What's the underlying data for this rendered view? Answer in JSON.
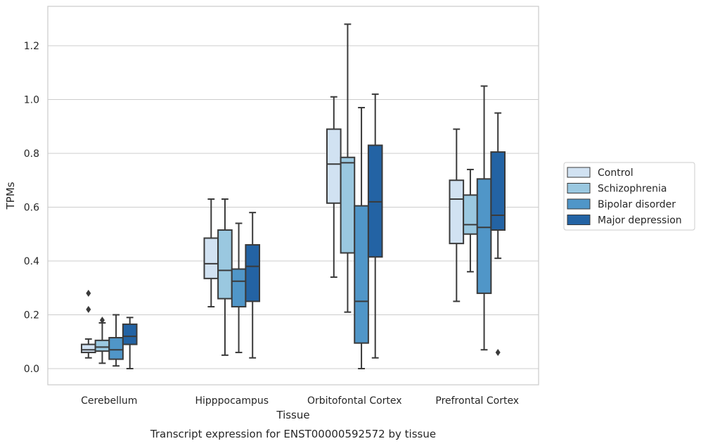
{
  "chart_data": {
    "type": "boxplot",
    "title": "",
    "caption": "Transcript expression for ENST00000592572 by tissue",
    "xlabel": "Tissue",
    "ylabel": "TPMs",
    "ylim": [
      -0.06,
      1.34
    ],
    "yticks": [
      0.0,
      0.2,
      0.4,
      0.6,
      0.8,
      1.0,
      1.2
    ],
    "ytick_labels": [
      "0.0",
      "0.2",
      "0.4",
      "0.6",
      "0.8",
      "1.0",
      "1.2"
    ],
    "grid": "horizontal",
    "legend_position": "right",
    "categories": [
      "Cerebellum",
      "Hipppocampus",
      "Orbitofontal Cortex",
      "Prefrontal Cortex"
    ],
    "series": [
      {
        "name": "Control",
        "color": "#d1e2f2",
        "boxes": [
          {
            "whislo": 0.04,
            "q1": 0.06,
            "med": 0.07,
            "q3": 0.09,
            "whishi": 0.11,
            "fliers": [
              0.22,
              0.28
            ]
          },
          {
            "whislo": 0.23,
            "q1": 0.335,
            "med": 0.39,
            "q3": 0.485,
            "whishi": 0.63,
            "fliers": []
          },
          {
            "whislo": 0.34,
            "q1": 0.615,
            "med": 0.76,
            "q3": 0.89,
            "whishi": 1.01,
            "fliers": []
          },
          {
            "whislo": 0.25,
            "q1": 0.465,
            "med": 0.63,
            "q3": 0.7,
            "whishi": 0.89,
            "fliers": []
          }
        ]
      },
      {
        "name": "Schizophrenia",
        "color": "#9ac8e0",
        "boxes": [
          {
            "whislo": 0.02,
            "q1": 0.065,
            "med": 0.08,
            "q3": 0.105,
            "whishi": 0.17,
            "fliers": [
              0.18
            ]
          },
          {
            "whislo": 0.05,
            "q1": 0.26,
            "med": 0.365,
            "q3": 0.515,
            "whishi": 0.63,
            "fliers": []
          },
          {
            "whislo": 0.21,
            "q1": 0.43,
            "med": 0.765,
            "q3": 0.785,
            "whishi": 1.28,
            "fliers": []
          },
          {
            "whislo": 0.36,
            "q1": 0.5,
            "med": 0.535,
            "q3": 0.645,
            "whishi": 0.74,
            "fliers": []
          }
        ]
      },
      {
        "name": "Bipolar disorder",
        "color": "#5096c8",
        "boxes": [
          {
            "whislo": 0.01,
            "q1": 0.035,
            "med": 0.07,
            "q3": 0.115,
            "whishi": 0.2,
            "fliers": []
          },
          {
            "whislo": 0.06,
            "q1": 0.23,
            "med": 0.325,
            "q3": 0.37,
            "whishi": 0.54,
            "fliers": []
          },
          {
            "whislo": 0.0,
            "q1": 0.095,
            "med": 0.25,
            "q3": 0.605,
            "whishi": 0.97,
            "fliers": []
          },
          {
            "whislo": 0.07,
            "q1": 0.28,
            "med": 0.525,
            "q3": 0.705,
            "whishi": 1.05,
            "fliers": []
          }
        ]
      },
      {
        "name": "Major depression",
        "color": "#2363a4",
        "boxes": [
          {
            "whislo": 0.0,
            "q1": 0.09,
            "med": 0.12,
            "q3": 0.165,
            "whishi": 0.19,
            "fliers": []
          },
          {
            "whislo": 0.04,
            "q1": 0.25,
            "med": 0.38,
            "q3": 0.46,
            "whishi": 0.58,
            "fliers": []
          },
          {
            "whislo": 0.04,
            "q1": 0.415,
            "med": 0.62,
            "q3": 0.83,
            "whishi": 1.02,
            "fliers": []
          },
          {
            "whislo": 0.41,
            "q1": 0.515,
            "med": 0.57,
            "q3": 0.805,
            "whishi": 0.95,
            "fliers": [
              0.06
            ]
          }
        ]
      }
    ]
  }
}
